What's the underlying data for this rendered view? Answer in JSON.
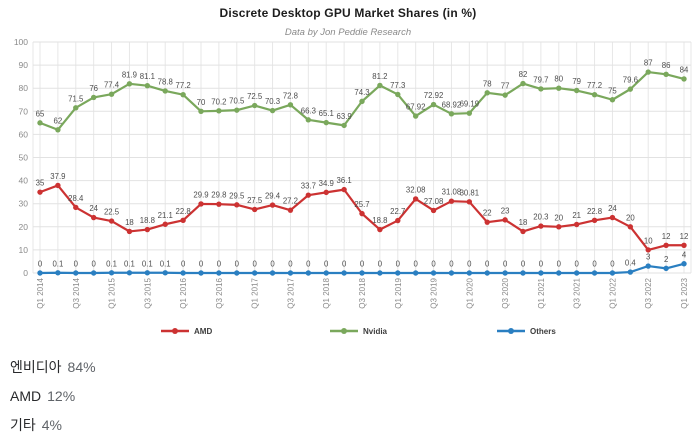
{
  "chart_data": {
    "type": "line",
    "title": "Discrete Desktop GPU Market Shares (in %)",
    "subtitle": "Data by Jon Peddie Research",
    "categories": [
      "Q1 2014",
      "Q2 2014",
      "Q3 2014",
      "Q4 2014",
      "Q1 2015",
      "Q2 2015",
      "Q3 2015",
      "Q4 2015",
      "Q1 2016",
      "Q2 2016",
      "Q3 2016",
      "Q4 2016",
      "Q1 2017",
      "Q2 2017",
      "Q3 2017",
      "Q4 2017",
      "Q1 2018",
      "Q2 2018",
      "Q3 2018",
      "Q4 2018",
      "Q1 2019",
      "Q2 2019",
      "Q3 2019",
      "Q4 2019",
      "Q1 2020",
      "Q2 2020",
      "Q3 2020",
      "Q4 2020",
      "Q1 2021",
      "Q2 2021",
      "Q3 2021",
      "Q4 2021",
      "Q1 2022",
      "Q2 2022",
      "Q3 2022",
      "Q4 2022",
      "Q1 2023"
    ],
    "x_tick_step": 2,
    "series": [
      {
        "name": "AMD",
        "color": "#cc3232",
        "values": [
          35,
          37.9,
          28.4,
          24,
          22.5,
          18,
          18.8,
          21.1,
          22.8,
          29.9,
          29.8,
          29.5,
          27.5,
          29.4,
          27.2,
          33.7,
          34.9,
          36.1,
          25.7,
          18.8,
          22.7,
          32.08,
          27.08,
          31.08,
          30.81,
          22,
          23,
          18,
          20.3,
          20,
          21,
          22.8,
          24,
          20,
          10,
          12,
          12
        ]
      },
      {
        "name": "Nvidia",
        "color": "#7aa85c",
        "values": [
          65,
          62,
          71.5,
          76,
          77.4,
          81.9,
          81.1,
          78.8,
          77.2,
          70,
          70.2,
          70.5,
          72.5,
          70.3,
          72.8,
          66.3,
          65.1,
          63.9,
          74.3,
          81.2,
          77.3,
          67.92,
          72.92,
          68.92,
          69.19,
          78,
          77,
          82,
          79.7,
          80,
          79,
          77.2,
          75,
          79.6,
          87,
          86,
          84
        ]
      },
      {
        "name": "Others",
        "color": "#2a7fc1",
        "values": [
          0,
          0.1,
          0,
          0,
          0.1,
          0.1,
          0.1,
          0.1,
          0,
          0,
          0,
          0,
          0,
          0,
          0,
          0,
          0,
          0,
          0,
          0,
          0,
          0,
          0,
          0,
          0,
          0,
          0,
          0,
          0,
          0,
          0,
          0,
          0,
          0.4,
          3,
          2,
          4
        ]
      }
    ],
    "ylim": [
      0,
      100
    ],
    "y_ticks": [
      0,
      10,
      20,
      30,
      40,
      50,
      60,
      70,
      80,
      90,
      100
    ],
    "grid": true,
    "data_labels": true,
    "legend_position": "bottom"
  },
  "summary": {
    "rows": [
      {
        "name": "엔비디아",
        "value": "84%"
      },
      {
        "name": "AMD",
        "value": "12%"
      },
      {
        "name": "기타",
        "value": "4%"
      }
    ]
  },
  "colors": {
    "amd": "#cc3232",
    "nvidia": "#7aa85c",
    "others": "#2a7fc1",
    "grid": "#e7e7e7",
    "tick_text": "#8a8a8a",
    "label_text": "#4d4d4d"
  }
}
